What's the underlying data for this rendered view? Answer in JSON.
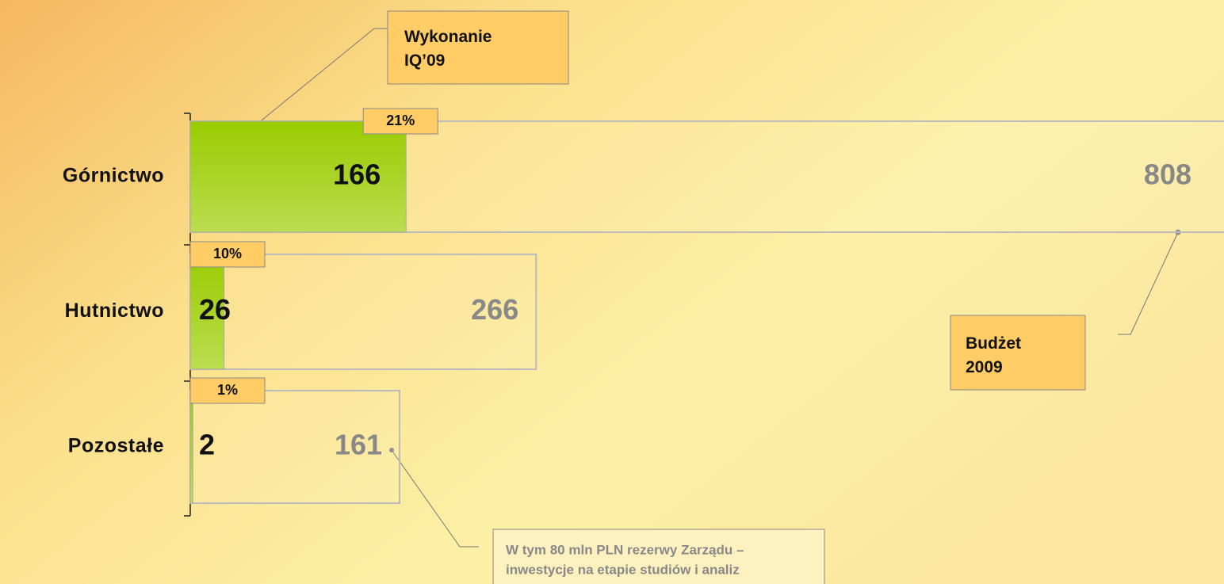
{
  "chart_data": {
    "type": "overlap-bar",
    "categories": [
      "Górnictwo",
      "Hutnictwo",
      "Pozostałe"
    ],
    "series": [
      {
        "name": "Wykonanie IQ’09",
        "color": "#99cc00",
        "values": [
          166,
          26,
          2
        ]
      },
      {
        "name": "Budżet 2009",
        "color": "#bbbbbb",
        "values": [
          808,
          266,
          161
        ]
      }
    ],
    "share_labels": [
      "21%",
      "10%",
      "1%"
    ],
    "annotation": [
      "W tym 80 mln PLN rezerwy Zarządu –",
      "inwestycje na etapie studiów i analiz"
    ]
  }
}
